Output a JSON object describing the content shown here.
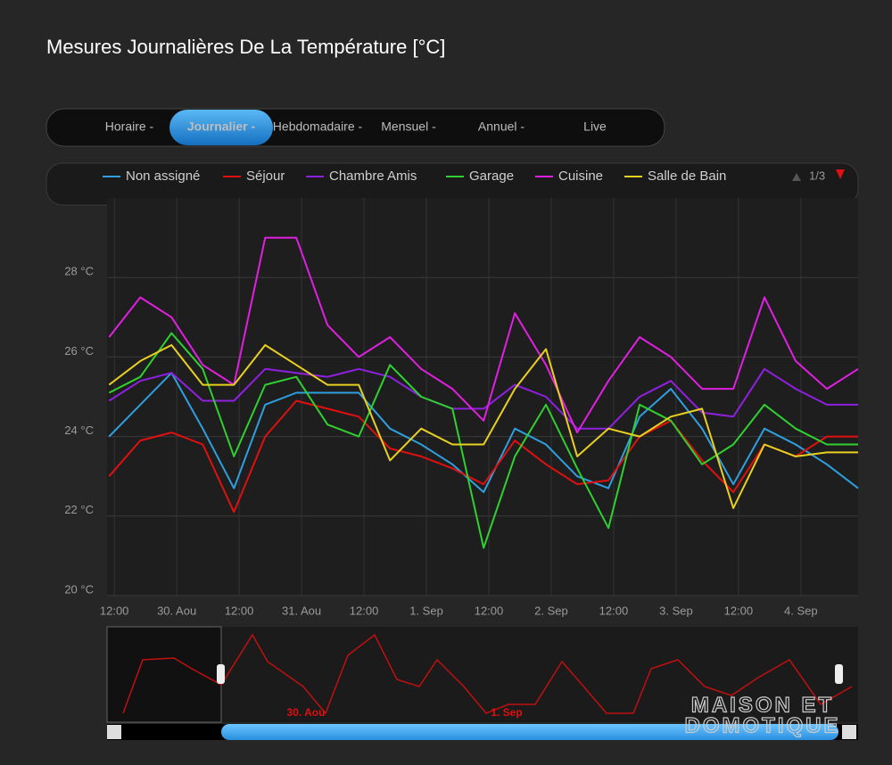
{
  "header": {
    "title": "Mesures Journalières De La Température [°C]"
  },
  "tabs": [
    "Horaire -",
    "Journalier -",
    "Hebdomadaire -",
    "Mensuel -",
    "Annuel -",
    "Live"
  ],
  "pager": "1/3",
  "navigator": {
    "labels": [
      "30. Aou",
      "1. Sep"
    ]
  },
  "watermark": [
    "MAISON ET",
    "DOMOTIQUE"
  ],
  "chart_data": {
    "type": "line",
    "x": [
      11,
      17,
      23,
      29,
      35,
      41,
      47,
      53,
      59,
      65,
      71,
      77,
      83,
      89,
      95,
      101,
      107,
      113,
      119,
      125,
      131,
      137,
      143,
      149,
      155
    ],
    "xlim": [
      10.6,
      155
    ],
    "xticks": [
      {
        "value": 12,
        "label": "12:00"
      },
      {
        "value": 24,
        "label": "30. Aou"
      },
      {
        "value": 36,
        "label": "12:00"
      },
      {
        "value": 48,
        "label": "31. Aou"
      },
      {
        "value": 60,
        "label": "12:00"
      },
      {
        "value": 72,
        "label": "1. Sep"
      },
      {
        "value": 84,
        "label": "12:00"
      },
      {
        "value": 96,
        "label": "2. Sep"
      },
      {
        "value": 108,
        "label": "12:00"
      },
      {
        "value": 120,
        "label": "3. Sep"
      },
      {
        "value": 132,
        "label": "12:00"
      },
      {
        "value": 144,
        "label": "4. Sep"
      }
    ],
    "ylim": [
      20,
      30
    ],
    "yticks": [
      {
        "value": 20,
        "label": "20 °C"
      },
      {
        "value": 22,
        "label": "22 °C"
      },
      {
        "value": 24,
        "label": "24 °C"
      },
      {
        "value": 26,
        "label": "26 °C"
      },
      {
        "value": 28,
        "label": "28 °C"
      }
    ],
    "grid": true,
    "series": [
      {
        "name": "Non assigné",
        "color": "#2f9fe0",
        "values": [
          24.0,
          24.8,
          25.6,
          24.2,
          22.7,
          24.8,
          25.1,
          25.1,
          25.1,
          24.2,
          23.8,
          23.3,
          22.6,
          24.2,
          23.8,
          23.0,
          22.7,
          24.5,
          25.2,
          24.2,
          22.8,
          24.2,
          23.8,
          23.3,
          22.7
        ]
      },
      {
        "name": "Séjour",
        "color": "#e01010",
        "values": [
          23.0,
          23.9,
          24.1,
          23.8,
          22.1,
          24.0,
          24.9,
          24.7,
          24.5,
          23.7,
          23.5,
          23.2,
          22.8,
          23.9,
          23.3,
          22.8,
          22.9,
          24.0,
          24.4,
          23.4,
          22.6,
          23.8,
          23.5,
          24.0,
          24.0
        ]
      },
      {
        "name": "Chambre Amis",
        "color": "#9020e0",
        "values": [
          24.9,
          25.4,
          25.6,
          24.9,
          24.9,
          25.7,
          25.6,
          25.5,
          25.7,
          25.5,
          25.0,
          24.7,
          24.7,
          25.3,
          25.0,
          24.2,
          24.2,
          25.0,
          25.4,
          24.6,
          24.5,
          25.7,
          25.2,
          24.8,
          24.8
        ]
      },
      {
        "name": "Garage",
        "color": "#30d030",
        "values": [
          25.1,
          25.5,
          26.6,
          25.7,
          23.5,
          25.3,
          25.5,
          24.3,
          24.0,
          25.8,
          25.0,
          24.7,
          21.2,
          23.5,
          24.8,
          23.2,
          21.7,
          24.8,
          24.4,
          23.3,
          23.8,
          24.8,
          24.2,
          23.8,
          23.8
        ]
      },
      {
        "name": "Cuisine",
        "color": "#e020e0",
        "values": [
          26.5,
          27.5,
          27.0,
          25.8,
          25.3,
          29.0,
          29.0,
          26.8,
          26.0,
          26.5,
          25.7,
          25.2,
          24.4,
          27.1,
          25.8,
          24.1,
          25.4,
          26.5,
          26.0,
          25.2,
          25.2,
          27.5,
          25.9,
          25.2,
          25.7
        ]
      },
      {
        "name": "Salle de Bain",
        "color": "#e8d020",
        "values": [
          25.3,
          25.9,
          26.3,
          25.3,
          25.3,
          26.3,
          25.8,
          25.3,
          25.3,
          23.4,
          24.2,
          23.8,
          23.8,
          25.2,
          26.2,
          23.5,
          24.2,
          24.0,
          24.5,
          24.7,
          22.2,
          23.8,
          23.5,
          23.6,
          23.6
        ]
      }
    ]
  }
}
